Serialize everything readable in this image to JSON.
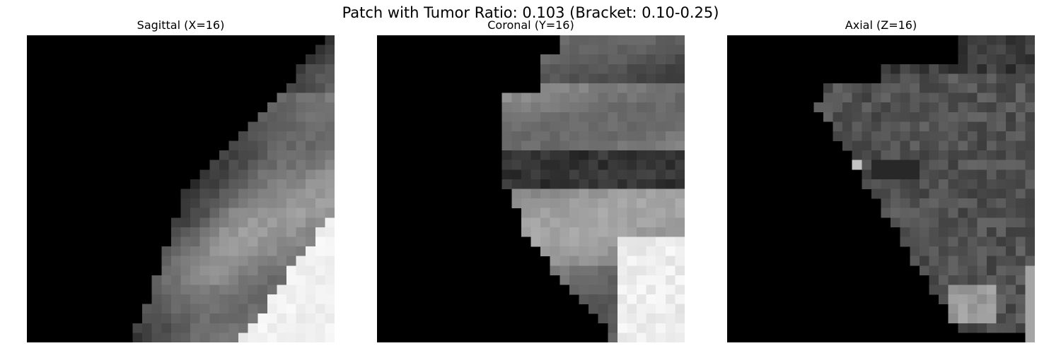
{
  "figure": {
    "title": "Patch with Tumor Ratio: 0.103 (Bracket: 0.10-0.25)"
  },
  "panels": [
    {
      "title": "Sagittal (X=16)",
      "view": "sagittal"
    },
    {
      "title": "Coronal (Y=16)",
      "view": "coronal"
    },
    {
      "title": "Axial (Z=16)",
      "view": "axial"
    }
  ],
  "colors": {
    "background": "#ffffff",
    "slice_background": "#000000",
    "colormap": "gray"
  }
}
